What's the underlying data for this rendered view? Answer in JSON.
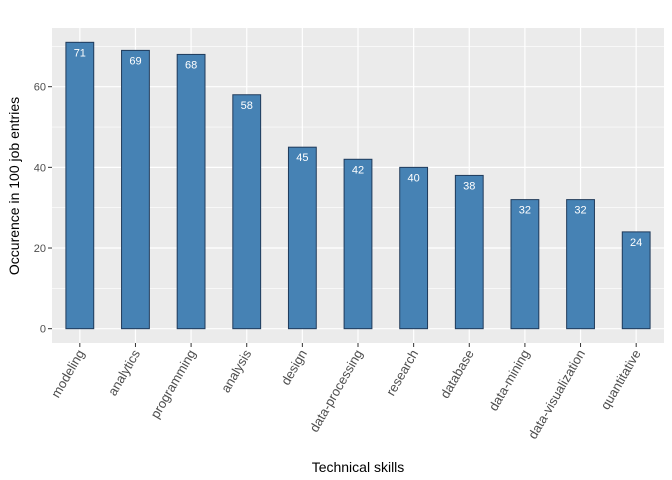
{
  "chart_data": {
    "type": "bar",
    "title": "",
    "xlabel": "Technical skills",
    "ylabel": "Occurence in 100 job entries",
    "categories": [
      "modeling",
      "analytics",
      "programming",
      "analysis",
      "design",
      "data-processing",
      "research",
      "database",
      "data-mining",
      "data-visualization",
      "quantitative"
    ],
    "values": [
      71,
      69,
      68,
      58,
      45,
      42,
      40,
      38,
      32,
      32,
      24
    ],
    "yticks": [
      0,
      20,
      40,
      60
    ],
    "ylim": [
      -3.55,
      74.55
    ],
    "grid": true,
    "legend": "none",
    "colors": {
      "bar_fill": "#4682B4",
      "bar_stroke": "#1f3a5a",
      "panel_bg": "#EBEBEB",
      "grid_major": "#FFFFFF",
      "label_text": "#FFFFFF"
    }
  }
}
